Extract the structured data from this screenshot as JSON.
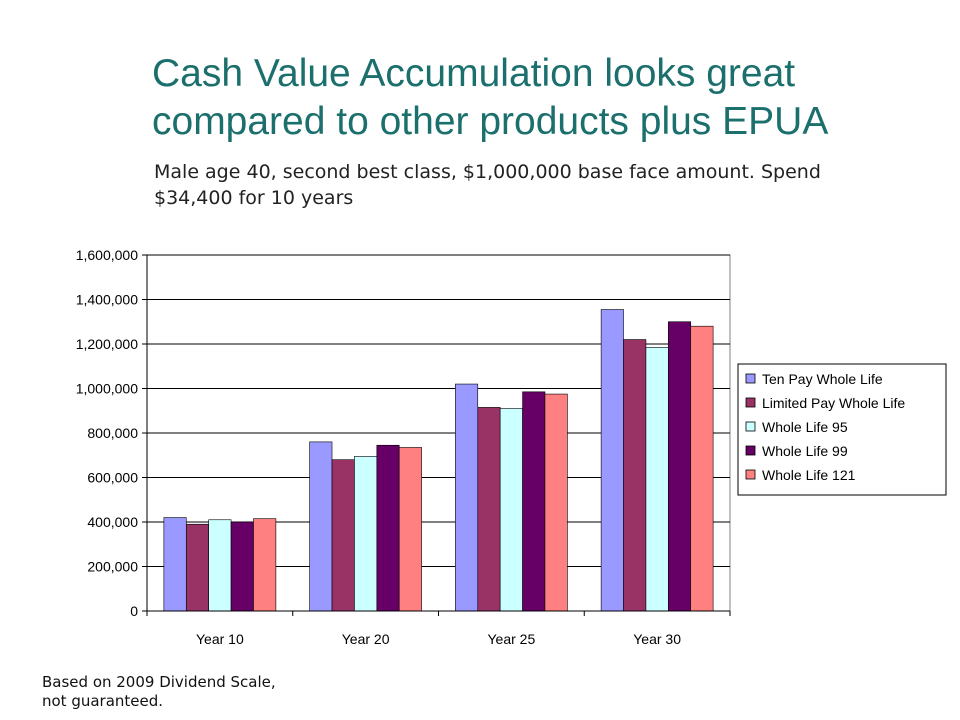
{
  "slide": {
    "title": "Cash Value Accumulation looks great compared to other products plus EPUA",
    "subtitle": "Male age 40, second best class, $1,000,000 base face amount.  Spend $34,400 for 10 years",
    "footnote": "Based on 2009 Dividend Scale, not guaranteed."
  },
  "chart_data": {
    "type": "bar",
    "title": "",
    "xlabel": "",
    "ylabel": "",
    "categories": [
      "Year 10",
      "Year 20",
      "Year 25",
      "Year 30"
    ],
    "ylim": [
      0,
      1600000
    ],
    "yticks": [
      0,
      200000,
      400000,
      600000,
      800000,
      1000000,
      1200000,
      1400000,
      1600000
    ],
    "ytick_labels": [
      "0",
      "200,000",
      "400,000",
      "600,000",
      "800,000",
      "1,000,000",
      "1,200,000",
      "1,400,000",
      "1,600,000"
    ],
    "grid": "horizontal",
    "legend_position": "right",
    "series": [
      {
        "name": "Ten Pay Whole Life",
        "color": "#9999ff",
        "values": [
          420000,
          760000,
          1020000,
          1355000
        ]
      },
      {
        "name": "Limited Pay Whole Life",
        "color": "#993366",
        "values": [
          390000,
          680000,
          915000,
          1220000
        ]
      },
      {
        "name": "Whole Life 95",
        "color": "#ccffff",
        "values": [
          410000,
          695000,
          910000,
          1185000
        ]
      },
      {
        "name": "Whole Life 99",
        "color": "#660066",
        "values": [
          400000,
          745000,
          985000,
          1300000
        ]
      },
      {
        "name": "Whole Life 121",
        "color": "#ff8080",
        "values": [
          415000,
          735000,
          975000,
          1280000
        ]
      }
    ]
  }
}
